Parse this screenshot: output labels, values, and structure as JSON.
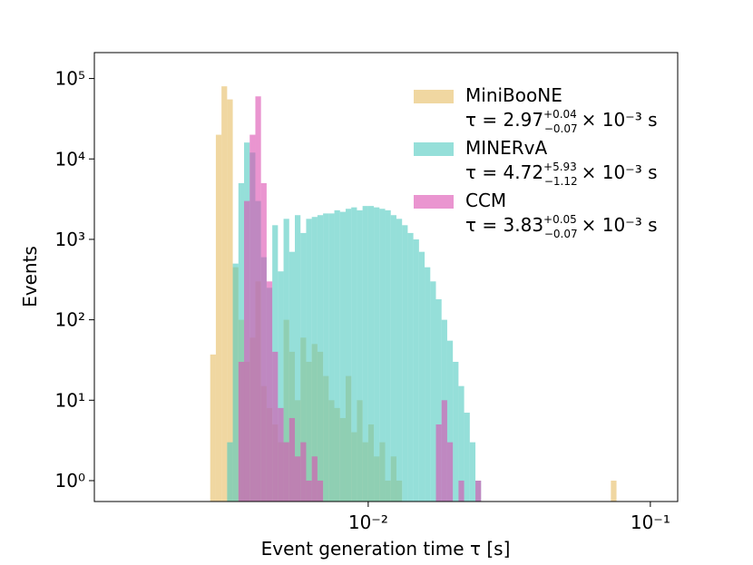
{
  "chart_data": {
    "type": "histogram",
    "xlabel": "Event generation time τ [s]",
    "ylabel": "Events",
    "xscale": "log",
    "yscale": "log",
    "xlim": [
      0.00107,
      0.125
    ],
    "ylim": [
      0.55,
      210000
    ],
    "xticks": [
      {
        "value": 0.01,
        "label": "10⁻²"
      },
      {
        "value": 0.1,
        "label": "10⁻¹"
      }
    ],
    "yticks": [
      {
        "value": 1,
        "label": "10⁰"
      },
      {
        "value": 10,
        "label": "10¹"
      },
      {
        "value": 100,
        "label": "10²"
      },
      {
        "value": 1000,
        "label": "10³"
      },
      {
        "value": 10000,
        "label": "10⁴"
      },
      {
        "value": 100000,
        "label": "10⁵"
      }
    ],
    "legend": "upper right",
    "series": [
      {
        "name": "MiniBooNE",
        "color": "#e6bd62",
        "label": {
          "main": "τ = 2.97",
          "sup": "+0.04",
          "sub": "−0.07",
          "tail": "× 10⁻³ s"
        },
        "bins": [
          0.0027542,
          0.002884,
          0.00302,
          0.0031623,
          0.0033113,
          0.0034674,
          0.0036308,
          0.0038019,
          0.0039811,
          0.0041687,
          0.0043652,
          0.0045709,
          0.0047863,
          0.0050119,
          0.0052481,
          0.0054954,
          0.0057544,
          0.0060256,
          0.0063096,
          0.0066069,
          0.0069183,
          0.0072444,
          0.0075858,
          0.0079433,
          0.0083176,
          0.0087096,
          0.0091201,
          0.0095499,
          0.01,
          0.010471,
          0.010965,
          0.011482,
          0.012023,
          0.012589,
          0.013183,
          0.013804,
          0.014454,
          0.015136,
          0.015849,
          0.016596,
          0.017378,
          0.018197,
          0.019055,
          0.019953,
          0.020893,
          0.021878,
          0.022909,
          0.023988,
          0.025119,
          0.072444,
          0.075858
        ],
        "values": [
          37,
          20000,
          80000,
          55000,
          450,
          100,
          30,
          60,
          300,
          15,
          8,
          5,
          3,
          100,
          40,
          10,
          60,
          30,
          50,
          40,
          20,
          10,
          8,
          6,
          20,
          4,
          10,
          3,
          5,
          2,
          3,
          1,
          2,
          1,
          0,
          0,
          0,
          0,
          0,
          0,
          0,
          0,
          0,
          0,
          0,
          0,
          0,
          0,
          0,
          1
        ]
      },
      {
        "name": "MINERvA",
        "color": "#4ec9c0",
        "label": {
          "main": "τ = 4.72",
          "sup": "+5.93",
          "sub": "−1.12",
          "tail": "× 10⁻³ s"
        },
        "bins": [
          0.0027542,
          0.002884,
          0.00302,
          0.0031623,
          0.0033113,
          0.0034674,
          0.0036308,
          0.0038019,
          0.0039811,
          0.0041687,
          0.0043652,
          0.0045709,
          0.0047863,
          0.0050119,
          0.0052481,
          0.0054954,
          0.0057544,
          0.0060256,
          0.0063096,
          0.0066069,
          0.0069183,
          0.0072444,
          0.0075858,
          0.0079433,
          0.0083176,
          0.0087096,
          0.0091201,
          0.0095499,
          0.01,
          0.010471,
          0.010965,
          0.011482,
          0.012023,
          0.012589,
          0.013183,
          0.013804,
          0.014454,
          0.015136,
          0.015849,
          0.016596,
          0.017378,
          0.018197,
          0.019055,
          0.019953,
          0.020893,
          0.021878,
          0.022909,
          0.023988,
          0.025119
        ],
        "values": [
          0,
          0,
          0,
          3,
          500,
          5000,
          16000,
          12000,
          3000,
          600,
          250,
          1500,
          400,
          1800,
          700,
          2000,
          1200,
          1800,
          1900,
          2000,
          2100,
          2100,
          2300,
          2200,
          2400,
          2500,
          2300,
          2600,
          2600,
          2500,
          2400,
          2300,
          2000,
          1800,
          1500,
          1200,
          1000,
          700,
          450,
          300,
          180,
          100,
          55,
          30,
          15,
          7,
          3,
          1
        ]
      },
      {
        "name": "CCM",
        "color": "#dc4fb0",
        "label": {
          "main": "τ = 3.83",
          "sup": "+0.05",
          "sub": "−0.07",
          "tail": "× 10⁻³ s"
        },
        "bins": [
          0.0027542,
          0.002884,
          0.00302,
          0.0031623,
          0.0033113,
          0.0034674,
          0.0036308,
          0.0038019,
          0.0039811,
          0.0041687,
          0.0043652,
          0.0045709,
          0.0047863,
          0.0050119,
          0.0052481,
          0.0054954,
          0.0057544,
          0.0060256,
          0.0063096,
          0.0066069,
          0.0069183,
          0.0072444,
          0.0075858,
          0.0079433,
          0.0083176,
          0.0087096,
          0.0091201,
          0.0095499,
          0.01,
          0.010471,
          0.010965,
          0.011482,
          0.012023,
          0.012589,
          0.013183,
          0.013804,
          0.014454,
          0.015136,
          0.015849,
          0.016596,
          0.017378,
          0.018197,
          0.019055,
          0.019953,
          0.020893,
          0.021878,
          0.022909,
          0.023988,
          0.025119
        ],
        "values": [
          0,
          0,
          0,
          0,
          0,
          30,
          3000,
          20000,
          60000,
          5000,
          300,
          40,
          8,
          3,
          6,
          2,
          3,
          1,
          2,
          1,
          0,
          0,
          0,
          0,
          0,
          0,
          0,
          0,
          0,
          0,
          0,
          0,
          0,
          0,
          0,
          0,
          0,
          0,
          0,
          0,
          5,
          10,
          3,
          0,
          1,
          0,
          0,
          1
        ]
      }
    ]
  }
}
